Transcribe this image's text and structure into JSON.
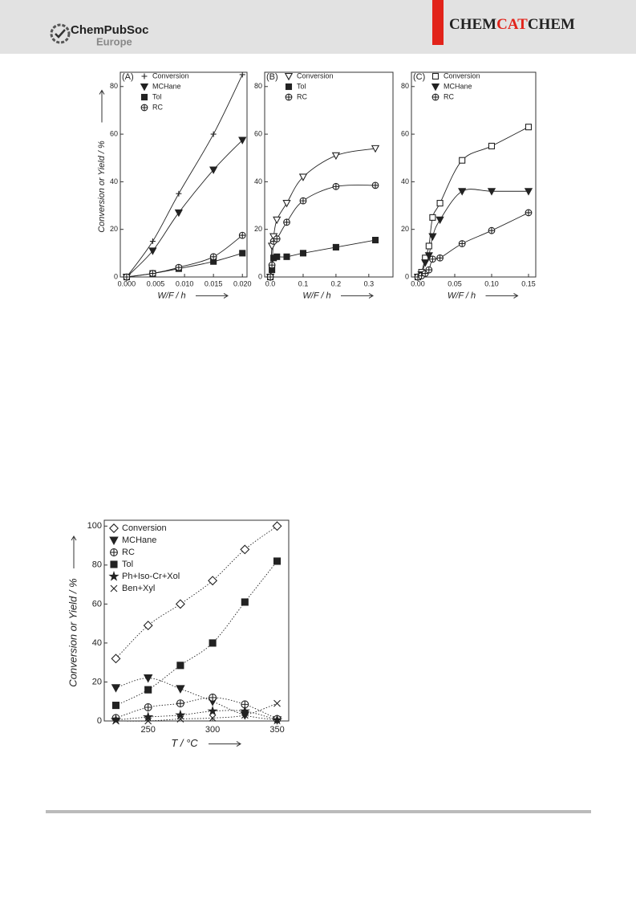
{
  "header": {
    "brand": "ChemPubSoc",
    "brand_sub": "Europe",
    "journal": [
      "CHEM",
      "CAT",
      "CHEM"
    ]
  },
  "chart_data": [
    {
      "type": "line",
      "panel": "(A)",
      "xlabel": "W/F / h",
      "ylabel": "Conversion or Yield / %",
      "x": [
        0,
        0.0045,
        0.009,
        0.015,
        0.02
      ],
      "xlim": [
        -0.0011,
        0.0208
      ],
      "ylim": [
        0,
        86
      ],
      "xticks": [
        {
          "value": 0,
          "label": "0.000"
        },
        {
          "value": 0.005,
          "label": "0.005"
        },
        {
          "value": 0.01,
          "label": "0.010"
        },
        {
          "value": 0.015,
          "label": "0.015"
        },
        {
          "value": 0.02,
          "label": "0.020"
        }
      ],
      "yticks": [
        0,
        20,
        40,
        60,
        80
      ],
      "legend": "upper left",
      "line_style": "solid",
      "series": [
        {
          "name": "Conversion",
          "marker": "plus",
          "color": "#222222",
          "values": [
            0,
            15,
            35,
            60,
            85
          ]
        },
        {
          "name": "MCHane",
          "marker": "triangle-down",
          "color": "#222222",
          "values": [
            0,
            11,
            27,
            45,
            57.5
          ]
        },
        {
          "name": "Tol",
          "marker": "square",
          "color": "#222222",
          "values": [
            0,
            1.5,
            3.5,
            6.5,
            10
          ]
        },
        {
          "name": "RC",
          "marker": "circle-plus",
          "color": "#222222",
          "values": [
            0,
            1.5,
            4,
            8.5,
            17.5
          ]
        }
      ]
    },
    {
      "type": "line",
      "panel": "(B)",
      "xlabel": "W/F / h",
      "x": [
        0,
        0.005,
        0.01,
        0.02,
        0.05,
        0.1,
        0.2,
        0.32
      ],
      "xlim": [
        -0.0172,
        0.3737
      ],
      "ylim": [
        0,
        86
      ],
      "xticks": [
        {
          "value": 0,
          "label": "0.0"
        },
        {
          "value": 0.1,
          "label": "0.1"
        },
        {
          "value": 0.2,
          "label": "0.2"
        },
        {
          "value": 0.3,
          "label": "0.3"
        }
      ],
      "yticks": [
        0,
        20,
        40,
        60,
        80
      ],
      "legend": "upper left",
      "line_style": "solid",
      "series": [
        {
          "name": "Conversion",
          "marker": "triangle-down-open",
          "color": "#222222",
          "values": [
            0,
            13,
            17,
            24,
            31,
            42,
            51,
            54
          ]
        },
        {
          "name": "Tol",
          "marker": "square",
          "color": "#222222",
          "values": [
            0,
            3,
            8,
            8.5,
            8.5,
            10,
            12.5,
            15.5
          ]
        },
        {
          "name": "RC",
          "marker": "circle-plus",
          "color": "#222222",
          "values": [
            0,
            5,
            15,
            16,
            23,
            32,
            38,
            38.5
          ]
        }
      ]
    },
    {
      "type": "line",
      "panel": "(C)",
      "xlabel": "W/F / h",
      "x": [
        0,
        0.005,
        0.01,
        0.015,
        0.02,
        0.03,
        0.06,
        0.1,
        0.15
      ],
      "xlim": [
        -0.0087,
        0.1598
      ],
      "ylim": [
        0,
        86
      ],
      "xticks": [
        {
          "value": 0,
          "label": "0.00"
        },
        {
          "value": 0.05,
          "label": "0.05"
        },
        {
          "value": 0.1,
          "label": "0.10"
        },
        {
          "value": 0.15,
          "label": "0.15"
        }
      ],
      "yticks": [
        0,
        20,
        40,
        60,
        80
      ],
      "legend": "upper left",
      "line_style": "solid",
      "series": [
        {
          "name": "Conversion",
          "marker": "square-open",
          "color": "#222222",
          "values": [
            0,
            2,
            8,
            13,
            25,
            31,
            49,
            55,
            63
          ]
        },
        {
          "name": "MCHane",
          "marker": "triangle-down",
          "color": "#222222",
          "values": [
            0,
            1,
            6,
            9,
            17,
            24,
            36,
            36,
            36
          ]
        },
        {
          "name": "RC",
          "marker": "circle-plus",
          "color": "#222222",
          "values": [
            0,
            0.5,
            1.5,
            3,
            7.5,
            8,
            14,
            19.5,
            27
          ]
        }
      ]
    },
    {
      "type": "line",
      "xlabel": "T / °C",
      "ylabel": "Conversion or Yield / %",
      "x": [
        225,
        250,
        275,
        300,
        325,
        350
      ],
      "xlim": [
        216,
        359
      ],
      "ylim": [
        0,
        103
      ],
      "xticks": [
        250,
        300,
        350
      ],
      "yticks": [
        0,
        20,
        40,
        60,
        80,
        100
      ],
      "legend": "upper left",
      "line_style": "dotted",
      "series": [
        {
          "name": "Conversion",
          "marker": "diamond-open",
          "color": "#222222",
          "values": [
            32,
            49,
            60,
            72,
            88,
            100
          ]
        },
        {
          "name": "MCHane",
          "marker": "triangle-down",
          "color": "#222222",
          "values": [
            17,
            22,
            16.5,
            10,
            3,
            0.5
          ]
        },
        {
          "name": "RC",
          "marker": "circle-plus",
          "color": "#222222",
          "values": [
            1.5,
            7,
            9,
            12,
            8.5,
            1
          ]
        },
        {
          "name": "Tol",
          "marker": "square",
          "color": "#222222",
          "values": [
            8,
            16,
            28.5,
            40,
            61,
            82
          ]
        },
        {
          "name": "Ph+Iso-Cr+Xol",
          "marker": "star",
          "color": "#222222",
          "values": [
            0.5,
            2,
            3,
            5,
            5,
            0.5
          ]
        },
        {
          "name": "Ben+Xyl",
          "marker": "x",
          "color": "#222222",
          "values": [
            0,
            0,
            1,
            1.5,
            3,
            9
          ]
        }
      ]
    }
  ]
}
